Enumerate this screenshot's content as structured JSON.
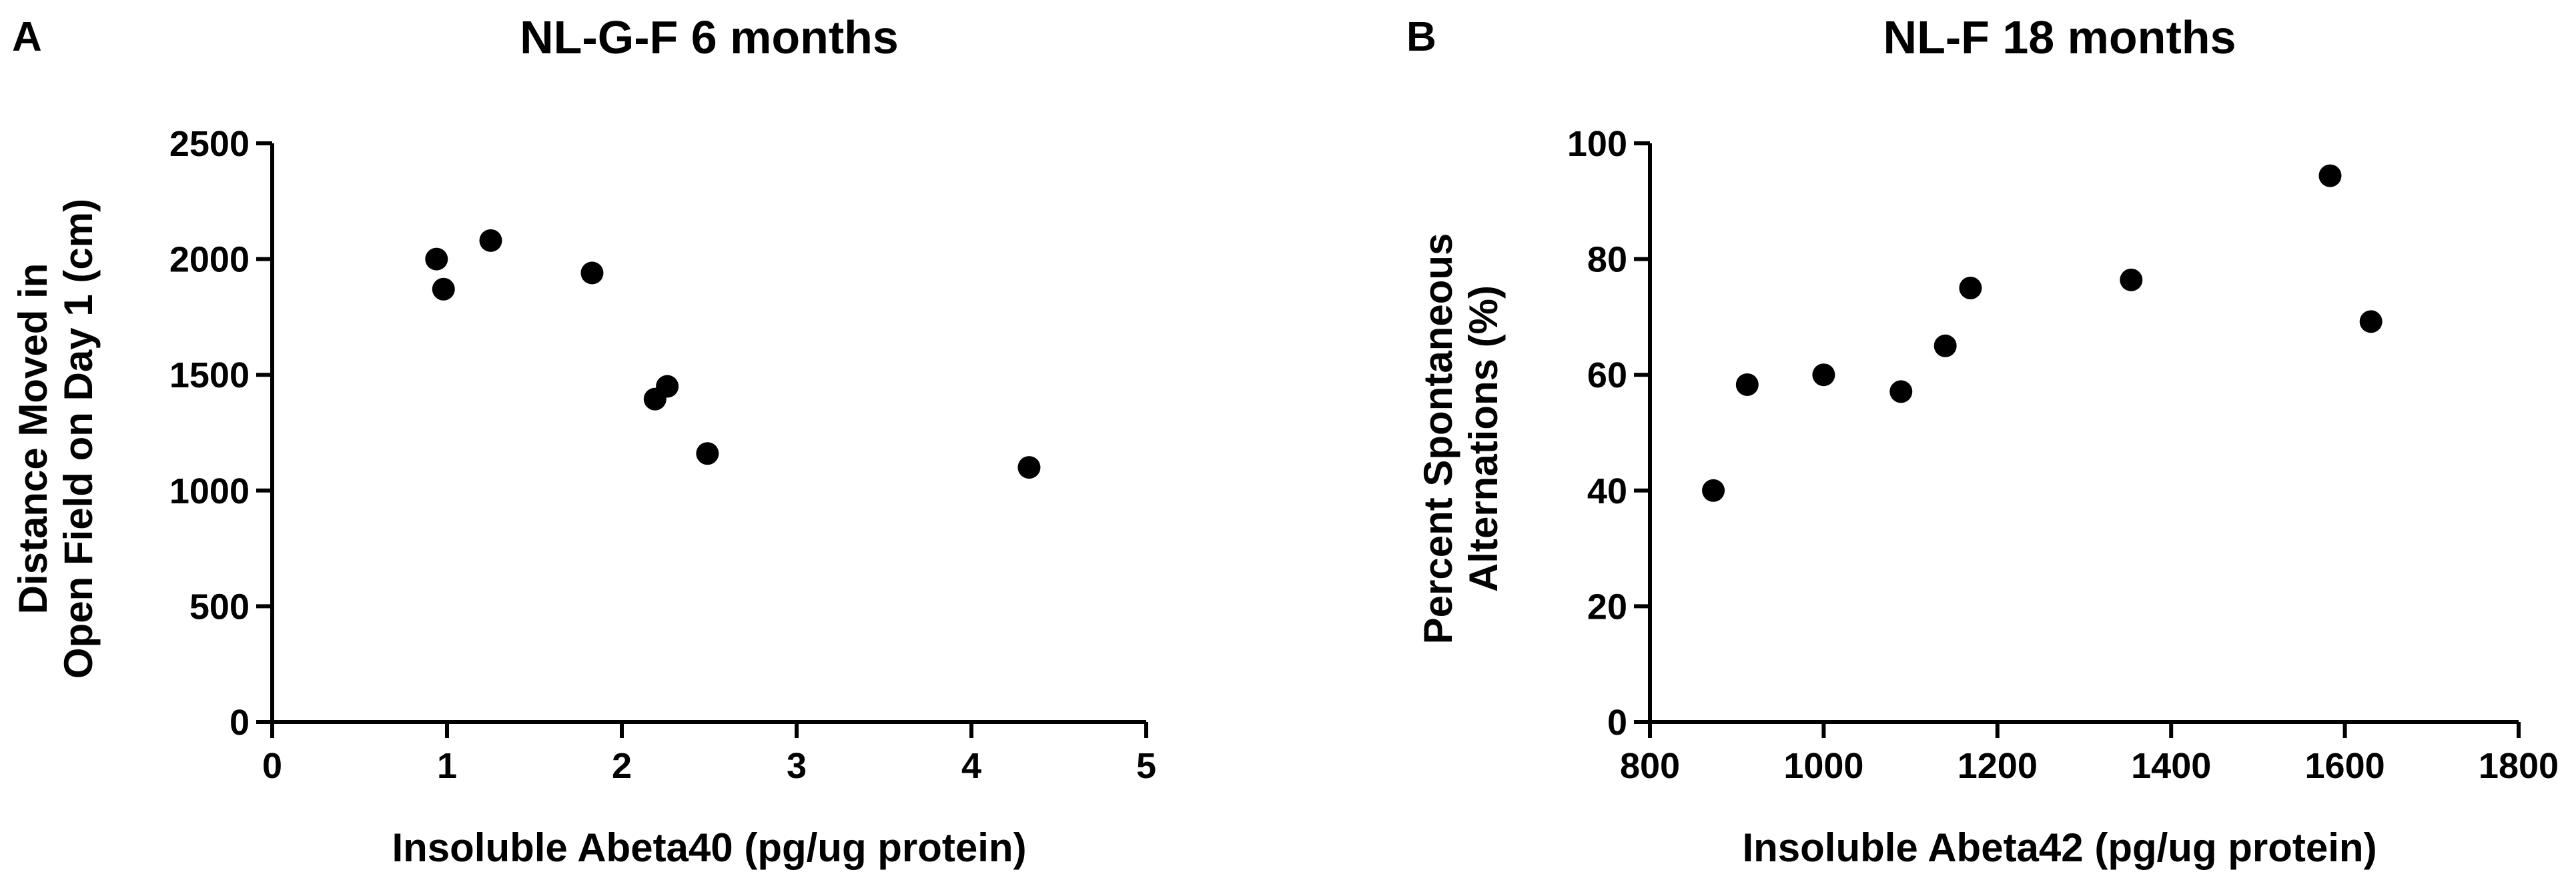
{
  "panels": [
    {
      "letter": "A",
      "title": "NL-G-F 6 months",
      "xlabel": "Insoluble Abeta40 (pg/ug protein)",
      "ylabel_lines": [
        "Distance Moved in",
        "Open Field on Day 1 (cm)"
      ]
    },
    {
      "letter": "B",
      "title": "NL-F 18 months",
      "xlabel": "Insoluble Abeta42 (pg/ug protein)",
      "ylabel_lines": [
        "Percent Spontaneous",
        "Alternations (%)"
      ]
    }
  ],
  "chart_data": [
    {
      "type": "scatter",
      "title": "NL-G-F 6 months",
      "xlabel": "Insoluble Abeta40 (pg/ug protein)",
      "ylabel": "Distance Moved in Open Field on Day 1 (cm)",
      "xlim": [
        0,
        5
      ],
      "ylim": [
        0,
        2500
      ],
      "xticks": [
        0,
        1,
        2,
        3,
        4,
        5
      ],
      "yticks": [
        0,
        500,
        1000,
        1500,
        2000,
        2500
      ],
      "grid": false,
      "x": [
        0.94,
        0.98,
        1.25,
        1.83,
        2.19,
        2.26,
        2.49,
        4.33
      ],
      "y": [
        2000,
        1870,
        2080,
        1940,
        1395,
        1450,
        1160,
        1100
      ],
      "marker_color": "#000000"
    },
    {
      "type": "scatter",
      "title": "NL-F 18 months",
      "xlabel": "Insoluble Abeta42 (pg/ug protein)",
      "ylabel": "Percent Spontaneous Alternations (%)",
      "xlim": [
        800,
        1800
      ],
      "ylim": [
        0,
        100
      ],
      "xticks": [
        800,
        1000,
        1200,
        1400,
        1600,
        1800
      ],
      "yticks": [
        0,
        20,
        40,
        60,
        80,
        100
      ],
      "grid": false,
      "x": [
        873,
        912,
        1000,
        1089,
        1140,
        1169,
        1354,
        1583,
        1630
      ],
      "y": [
        40,
        58.3,
        60,
        57.1,
        65,
        75,
        76.4,
        94.4,
        69.2
      ],
      "marker_color": "#000000"
    }
  ]
}
